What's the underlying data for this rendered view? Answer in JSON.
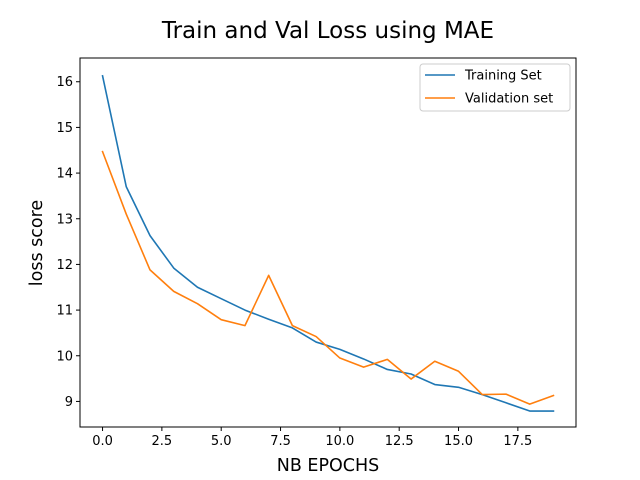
{
  "chart_data": {
    "type": "line",
    "title": "Train and Val Loss using MAE",
    "xlabel": "NB EPOCHS",
    "ylabel": "loss score",
    "xlim": [
      -0.95,
      19.95
    ],
    "ylim": [
      8.44,
      16.52
    ],
    "xticks": [
      0,
      2.5,
      5,
      7.5,
      10,
      12.5,
      15,
      17.5
    ],
    "xtick_labels": [
      "0.0",
      "2.5",
      "5.0",
      "7.5",
      "10.0",
      "12.5",
      "15.0",
      "17.5"
    ],
    "yticks": [
      9,
      10,
      11,
      12,
      13,
      14,
      15,
      16
    ],
    "ytick_labels": [
      "9",
      "10",
      "11",
      "12",
      "13",
      "14",
      "15",
      "16"
    ],
    "grid": false,
    "legend_position": "top-right",
    "x": [
      0,
      1,
      2,
      3,
      4,
      5,
      6,
      7,
      8,
      9,
      10,
      11,
      12,
      13,
      14,
      15,
      16,
      17,
      18,
      19
    ],
    "series": [
      {
        "name": "Training Set",
        "color": "#1f77b4",
        "values": [
          16.13,
          13.7,
          12.63,
          11.92,
          11.5,
          11.25,
          11.0,
          10.8,
          10.61,
          10.3,
          10.14,
          9.93,
          9.7,
          9.6,
          9.37,
          9.31,
          9.15,
          8.97,
          8.79,
          8.79
        ]
      },
      {
        "name": "Validation set",
        "color": "#ff7f0e",
        "values": [
          14.47,
          13.1,
          11.88,
          11.41,
          11.14,
          10.79,
          10.66,
          11.76,
          10.66,
          10.42,
          9.95,
          9.75,
          9.92,
          9.49,
          9.88,
          9.66,
          9.15,
          9.16,
          8.94,
          9.13
        ]
      }
    ]
  }
}
